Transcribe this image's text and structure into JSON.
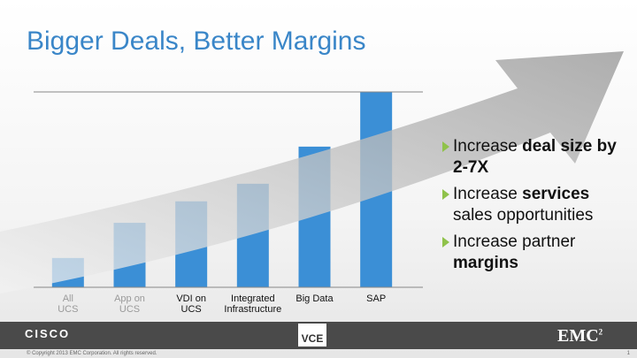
{
  "chart_data": {
    "type": "bar",
    "categories": [
      "All\nUCS",
      "App on\nUCS",
      "VDI on\nUCS",
      "Integrated\nInfrastructure",
      "Big Data",
      "SAP"
    ],
    "values": [
      15,
      33,
      44,
      53,
      72,
      100
    ],
    "color": "#3b8fd6",
    "ylim": [
      0,
      100
    ]
  },
  "header": {
    "title": "Bigger Deals, Better Margins"
  },
  "bullets": [
    [
      "Increase ",
      "deal size by 2-7X"
    ],
    [
      "Increase ",
      "services",
      " sales opportunities"
    ],
    [
      "Increase partner ",
      "margins"
    ]
  ],
  "footer": {
    "logos": [
      "CISCO",
      "VCE",
      "EMC",
      "2"
    ],
    "copyright": "© Copyright 2013 EMC Corporation. All rights reserved.",
    "page": "1"
  }
}
